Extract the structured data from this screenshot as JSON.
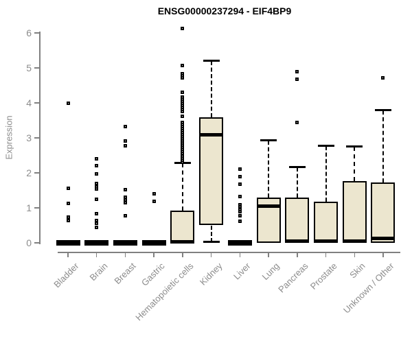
{
  "title": "ENSG00000237294 - EIF4BP9",
  "y_axis": {
    "label": "Expression"
  },
  "chart_data": {
    "type": "boxplot",
    "title": "ENSG00000237294 - EIF4BP9",
    "xlabel": "",
    "ylabel": "Expression",
    "ylim": [
      0,
      6.2
    ],
    "yticks": [
      0,
      1,
      2,
      3,
      4,
      5,
      6
    ],
    "grid": false,
    "legend": "none",
    "categories": [
      "Bladder",
      "Brain",
      "Breast",
      "Gastric",
      "Hematopoietic cells",
      "Kidney",
      "Liver",
      "Lung",
      "Pancreas",
      "Prostate",
      "Skin",
      "Unknown / Other"
    ],
    "boxes": [
      {
        "category": "Bladder",
        "q1": 0,
        "median": 0,
        "q3": 0,
        "whisker_low": null,
        "whisker_high": null,
        "collapsed": true,
        "outliers": [
          4.0,
          1.55,
          1.12,
          0.74,
          0.64
        ]
      },
      {
        "category": "Brain",
        "q1": 0,
        "median": 0,
        "q3": 0,
        "whisker_low": null,
        "whisker_high": null,
        "collapsed": true,
        "outliers": [
          2.4,
          2.21,
          1.98,
          1.7,
          1.6,
          1.53,
          1.25,
          0.84,
          0.64,
          0.55,
          0.45
        ]
      },
      {
        "category": "Breast",
        "q1": 0,
        "median": 0,
        "q3": 0,
        "whisker_low": null,
        "whisker_high": null,
        "collapsed": true,
        "outliers": [
          3.32,
          2.92,
          2.78,
          1.51,
          1.3,
          1.22,
          1.15,
          0.78
        ]
      },
      {
        "category": "Gastric",
        "q1": 0,
        "median": 0,
        "q3": 0,
        "whisker_low": null,
        "whisker_high": null,
        "collapsed": true,
        "outliers": [
          1.4,
          1.18
        ]
      },
      {
        "category": "Hematopoietic cells",
        "q1": 0,
        "median": 0.02,
        "q3": 0.93,
        "whisker_low": null,
        "whisker_high": 2.28,
        "collapsed": false,
        "outliers": [
          6.13,
          5.07,
          4.84,
          4.77,
          4.72,
          4.3,
          4.17,
          4.11,
          4.05,
          3.99,
          3.93,
          3.87,
          3.81,
          3.75,
          3.61,
          3.45,
          3.39,
          3.33,
          3.27,
          3.21,
          3.15,
          3.09,
          3.03,
          2.97,
          2.91,
          2.85,
          2.79,
          2.73,
          2.67,
          2.61,
          2.55,
          2.49,
          2.43,
          2.37,
          2.31
        ]
      },
      {
        "category": "Kidney",
        "q1": 0.5,
        "median": 3.08,
        "q3": 3.58,
        "whisker_low": 0.02,
        "whisker_high": 5.2,
        "collapsed": false,
        "outliers": []
      },
      {
        "category": "Liver",
        "q1": 0,
        "median": 0,
        "q3": 0,
        "whisker_low": null,
        "whisker_high": null,
        "collapsed": true,
        "outliers": [
          2.11,
          1.9,
          1.67,
          1.33,
          1.08,
          1.02,
          0.96,
          0.9,
          0.78,
          0.61
        ]
      },
      {
        "category": "Lung",
        "q1": 0,
        "median": 1.04,
        "q3": 1.3,
        "whisker_low": null,
        "whisker_high": 2.93,
        "collapsed": false,
        "outliers": []
      },
      {
        "category": "Pancreas",
        "q1": 0,
        "median": 0.04,
        "q3": 1.3,
        "whisker_low": null,
        "whisker_high": 2.16,
        "collapsed": false,
        "outliers": [
          4.9,
          4.68,
          3.45
        ]
      },
      {
        "category": "Prostate",
        "q1": 0,
        "median": 0.04,
        "q3": 1.18,
        "whisker_low": null,
        "whisker_high": 2.77,
        "collapsed": false,
        "outliers": []
      },
      {
        "category": "Skin",
        "q1": 0,
        "median": 0.04,
        "q3": 1.76,
        "whisker_low": null,
        "whisker_high": 2.75,
        "collapsed": false,
        "outliers": []
      },
      {
        "category": "Unknown / Other",
        "q1": 0,
        "median": 0.13,
        "q3": 1.73,
        "whisker_low": null,
        "whisker_high": 3.79,
        "collapsed": false,
        "outliers": [
          4.71
        ]
      }
    ],
    "style": {
      "box_fill": "#ece6cf",
      "box_border": "#000000",
      "median_color": "#000000",
      "whisker_style": "dashed",
      "axis_color": "#808080",
      "tick_label_color": "#8c8c8c",
      "title_color": "#000000",
      "outlier_marker": "open-square"
    }
  }
}
